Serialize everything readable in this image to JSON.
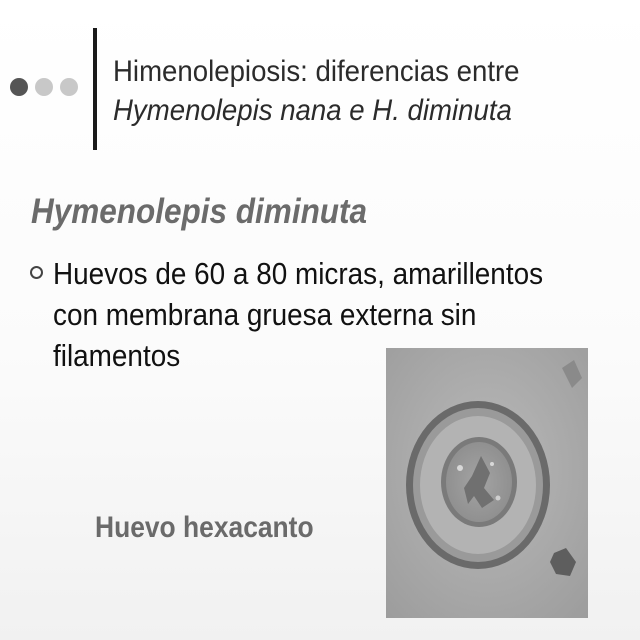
{
  "header": {
    "title_line1": "Himenolepiosis: diferencias entre",
    "title_line2": "Hymenolepis nana  e H. diminuta"
  },
  "section": {
    "heading": "Hymenolepis diminuta"
  },
  "bullets": [
    {
      "text": "Huevos de  60 a 80 micras, amarillentos con membrana gruesa externa sin filamentos"
    }
  ],
  "figure": {
    "caption": "Huevo hexacanto"
  },
  "colors": {
    "title_text": "#2b2b2b",
    "subheading_text": "#6b6b6b",
    "caption_text": "#6a6a6a",
    "dot_active": "#555555",
    "dot_inactive": "#c8c8c8"
  }
}
